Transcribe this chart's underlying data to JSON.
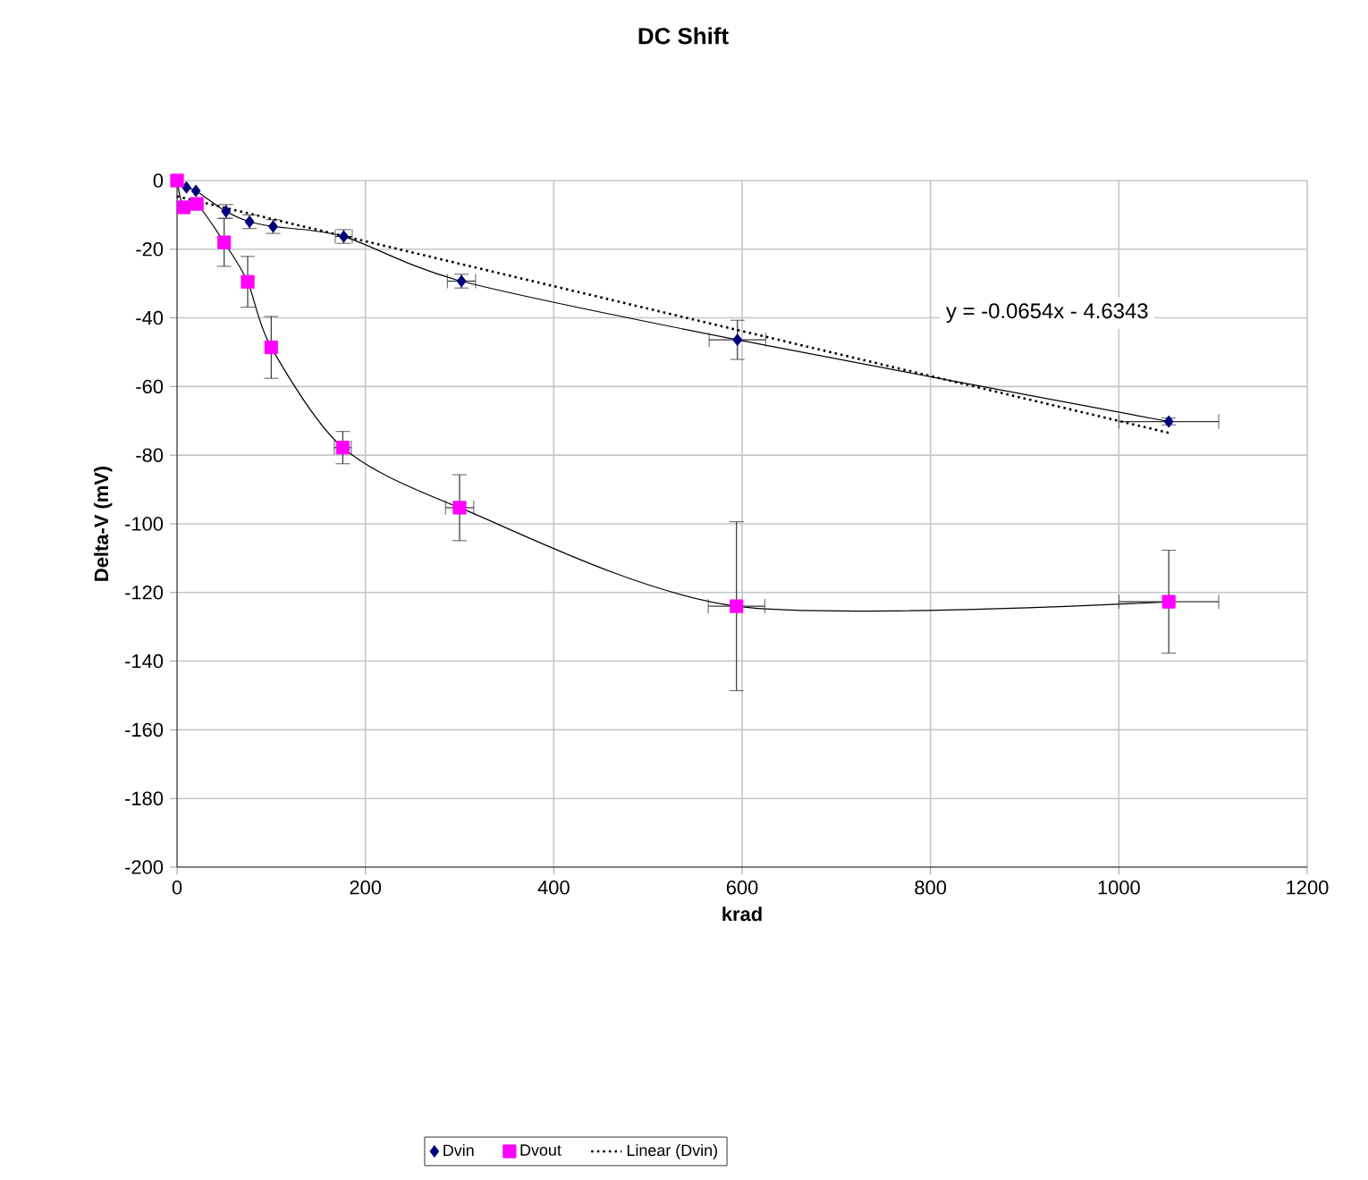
{
  "chart_data": {
    "type": "line",
    "title": "DC Shift",
    "xlabel": "krad",
    "ylabel": "Delta-V (mV)",
    "xlim": [
      0,
      1200
    ],
    "xticks": [
      0,
      200,
      400,
      600,
      800,
      1000,
      1200
    ],
    "ylim": [
      -200,
      0
    ],
    "yticks": [
      -200,
      -180,
      -160,
      -140,
      -120,
      -100,
      -80,
      -60,
      -40,
      -20,
      0
    ],
    "grid": true,
    "legend": "bottom",
    "line_style": "solid",
    "series": [
      {
        "name": "Dvin",
        "color": "#000080",
        "marker": "diamond",
        "x": [
          0,
          10,
          20,
          52,
          77,
          102,
          177,
          302,
          595,
          1053
        ],
        "values": [
          0,
          -2,
          -3,
          -9,
          -12,
          -13.4,
          -16.3,
          -29.3,
          -46.4,
          -70.2
        ],
        "errors": [
          null,
          null,
          null,
          2,
          2,
          2,
          2,
          2,
          5.7,
          1
        ],
        "xerrors": [
          null,
          null,
          null,
          null,
          null,
          null,
          9,
          15,
          30,
          53
        ]
      },
      {
        "name": "Dvout",
        "color": "#ff00ff",
        "marker": "square",
        "x": [
          0,
          7,
          21,
          50,
          75,
          100,
          176,
          300,
          594,
          1053
        ],
        "values": [
          0,
          -7.8,
          -6.8,
          -18,
          -29.5,
          -48.6,
          -77.8,
          -95.3,
          -124,
          -122.7
        ],
        "errors": [
          null,
          null,
          null,
          7,
          7.4,
          9,
          4.7,
          9.6,
          24.6,
          15
        ],
        "xerrors": [
          null,
          null,
          null,
          null,
          null,
          null,
          9,
          15,
          30,
          53
        ]
      },
      {
        "name": "Linear (Dvin)",
        "type": "line",
        "color": "#000000",
        "marker": "none",
        "line_style": "dotted",
        "x": [
          0,
          1053
        ],
        "values": [
          -4.6,
          -73.5
        ]
      }
    ],
    "annotations": [
      "y = -0.0654x - 4.6343"
    ]
  }
}
